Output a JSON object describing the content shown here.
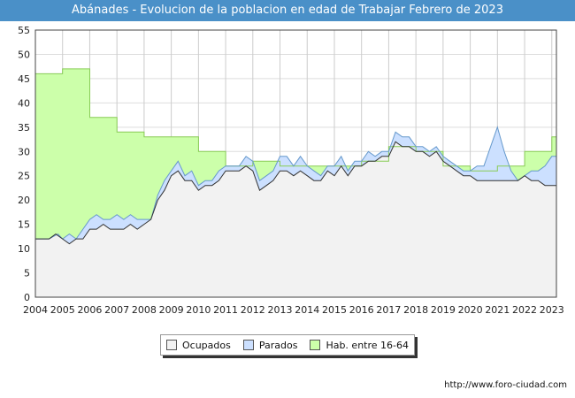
{
  "chart_data": {
    "type": "area",
    "title": "Abánades - Evolucion de la poblacion en edad de Trabajar Febrero de 2023",
    "x_start": 2004,
    "x_end": 2023.17,
    "ylim": [
      0,
      55
    ],
    "y_ticks": [
      0,
      5,
      10,
      15,
      20,
      25,
      30,
      35,
      40,
      45,
      50,
      55
    ],
    "x_ticks": [
      "2004",
      "2005",
      "2006",
      "2007",
      "2008",
      "2009",
      "2010",
      "2011",
      "2012",
      "2013",
      "2014",
      "2015",
      "2016",
      "2017",
      "2018",
      "2019",
      "2020",
      "2021",
      "2022",
      "2023"
    ],
    "grid": true,
    "legend_position": "bottom",
    "series": [
      {
        "name": "Hab. entre 16-64",
        "key": "hab",
        "color_fill": "#ccffaa",
        "color_line": "#88cc55",
        "points": [
          [
            2004.0,
            46
          ],
          [
            2005.0,
            46
          ],
          [
            2005.0,
            47
          ],
          [
            2006.0,
            47
          ],
          [
            2006.0,
            37
          ],
          [
            2007.0,
            37
          ],
          [
            2007.0,
            34
          ],
          [
            2008.0,
            34
          ],
          [
            2008.0,
            33
          ],
          [
            2010.0,
            33
          ],
          [
            2010.0,
            30
          ],
          [
            2011.0,
            30
          ],
          [
            2011.0,
            27
          ],
          [
            2012.0,
            27
          ],
          [
            2012.0,
            28
          ],
          [
            2013.0,
            28
          ],
          [
            2013.0,
            27
          ],
          [
            2014.0,
            27
          ],
          [
            2014.0,
            27
          ],
          [
            2015.0,
            27
          ],
          [
            2015.0,
            27
          ],
          [
            2016.0,
            27
          ],
          [
            2016.0,
            28
          ],
          [
            2017.0,
            28
          ],
          [
            2017.0,
            31
          ],
          [
            2018.0,
            31
          ],
          [
            2018.0,
            30
          ],
          [
            2019.0,
            30
          ],
          [
            2019.0,
            27
          ],
          [
            2020.0,
            27
          ],
          [
            2020.0,
            26
          ],
          [
            2021.0,
            26
          ],
          [
            2021.0,
            27
          ],
          [
            2022.0,
            27
          ],
          [
            2022.0,
            30
          ],
          [
            2023.0,
            30
          ],
          [
            2023.0,
            33
          ],
          [
            2023.17,
            33
          ]
        ]
      },
      {
        "name": "Parados",
        "key": "parados",
        "color_fill": "#cce0ff",
        "color_line": "#6699cc",
        "points": [
          [
            2004.0,
            12
          ],
          [
            2004.5,
            12
          ],
          [
            2004.83,
            13
          ],
          [
            2005.0,
            12
          ],
          [
            2005.25,
            13
          ],
          [
            2005.5,
            12
          ],
          [
            2005.75,
            14
          ],
          [
            2006.0,
            16
          ],
          [
            2006.25,
            17
          ],
          [
            2006.5,
            16
          ],
          [
            2006.75,
            16
          ],
          [
            2007.0,
            17
          ],
          [
            2007.25,
            16
          ],
          [
            2007.5,
            17
          ],
          [
            2007.75,
            16
          ],
          [
            2008.0,
            16
          ],
          [
            2008.25,
            16
          ],
          [
            2008.5,
            21
          ],
          [
            2008.75,
            24
          ],
          [
            2009.0,
            26
          ],
          [
            2009.25,
            28
          ],
          [
            2009.5,
            25
          ],
          [
            2009.75,
            26
          ],
          [
            2010.0,
            23
          ],
          [
            2010.25,
            24
          ],
          [
            2010.5,
            24
          ],
          [
            2010.75,
            26
          ],
          [
            2011.0,
            27
          ],
          [
            2011.25,
            27
          ],
          [
            2011.5,
            27
          ],
          [
            2011.75,
            29
          ],
          [
            2012.0,
            28
          ],
          [
            2012.25,
            24
          ],
          [
            2012.5,
            25
          ],
          [
            2012.75,
            26
          ],
          [
            2013.0,
            29
          ],
          [
            2013.25,
            29
          ],
          [
            2013.5,
            27
          ],
          [
            2013.75,
            29
          ],
          [
            2014.0,
            27
          ],
          [
            2014.25,
            26
          ],
          [
            2014.5,
            25
          ],
          [
            2014.75,
            27
          ],
          [
            2015.0,
            27
          ],
          [
            2015.25,
            29
          ],
          [
            2015.5,
            26
          ],
          [
            2015.75,
            28
          ],
          [
            2016.0,
            28
          ],
          [
            2016.25,
            30
          ],
          [
            2016.5,
            29
          ],
          [
            2016.75,
            30
          ],
          [
            2017.0,
            30
          ],
          [
            2017.25,
            34
          ],
          [
            2017.5,
            33
          ],
          [
            2017.75,
            33
          ],
          [
            2018.0,
            31
          ],
          [
            2018.25,
            31
          ],
          [
            2018.5,
            30
          ],
          [
            2018.75,
            31
          ],
          [
            2019.0,
            29
          ],
          [
            2019.25,
            28
          ],
          [
            2019.5,
            27
          ],
          [
            2019.75,
            26
          ],
          [
            2020.0,
            26
          ],
          [
            2020.25,
            27
          ],
          [
            2020.5,
            27
          ],
          [
            2020.75,
            31
          ],
          [
            2021.0,
            35
          ],
          [
            2021.25,
            30
          ],
          [
            2021.5,
            26
          ],
          [
            2021.75,
            24
          ],
          [
            2022.0,
            25
          ],
          [
            2022.25,
            26
          ],
          [
            2022.5,
            26
          ],
          [
            2022.75,
            27
          ],
          [
            2023.0,
            29
          ],
          [
            2023.17,
            29
          ]
        ]
      },
      {
        "name": "Ocupados",
        "key": "ocupados",
        "color_fill": "#f2f2f2",
        "color_line": "#333333",
        "points": [
          [
            2004.0,
            12
          ],
          [
            2004.5,
            12
          ],
          [
            2004.75,
            13
          ],
          [
            2005.0,
            12
          ],
          [
            2005.25,
            11
          ],
          [
            2005.5,
            12
          ],
          [
            2005.75,
            12
          ],
          [
            2006.0,
            14
          ],
          [
            2006.25,
            14
          ],
          [
            2006.5,
            15
          ],
          [
            2006.75,
            14
          ],
          [
            2007.0,
            14
          ],
          [
            2007.25,
            14
          ],
          [
            2007.5,
            15
          ],
          [
            2007.75,
            14
          ],
          [
            2008.0,
            15
          ],
          [
            2008.25,
            16
          ],
          [
            2008.5,
            20
          ],
          [
            2008.75,
            22
          ],
          [
            2009.0,
            25
          ],
          [
            2009.25,
            26
          ],
          [
            2009.5,
            24
          ],
          [
            2009.75,
            24
          ],
          [
            2010.0,
            22
          ],
          [
            2010.25,
            23
          ],
          [
            2010.5,
            23
          ],
          [
            2010.75,
            24
          ],
          [
            2011.0,
            26
          ],
          [
            2011.25,
            26
          ],
          [
            2011.5,
            26
          ],
          [
            2011.75,
            27
          ],
          [
            2012.0,
            26
          ],
          [
            2012.25,
            22
          ],
          [
            2012.5,
            23
          ],
          [
            2012.75,
            24
          ],
          [
            2013.0,
            26
          ],
          [
            2013.25,
            26
          ],
          [
            2013.5,
            25
          ],
          [
            2013.75,
            26
          ],
          [
            2014.0,
            25
          ],
          [
            2014.25,
            24
          ],
          [
            2014.5,
            24
          ],
          [
            2014.75,
            26
          ],
          [
            2015.0,
            25
          ],
          [
            2015.25,
            27
          ],
          [
            2015.5,
            25
          ],
          [
            2015.75,
            27
          ],
          [
            2016.0,
            27
          ],
          [
            2016.25,
            28
          ],
          [
            2016.5,
            28
          ],
          [
            2016.75,
            29
          ],
          [
            2017.0,
            29
          ],
          [
            2017.25,
            32
          ],
          [
            2017.5,
            31
          ],
          [
            2017.75,
            31
          ],
          [
            2018.0,
            30
          ],
          [
            2018.25,
            30
          ],
          [
            2018.5,
            29
          ],
          [
            2018.75,
            30
          ],
          [
            2019.0,
            28
          ],
          [
            2019.25,
            27
          ],
          [
            2019.5,
            26
          ],
          [
            2019.75,
            25
          ],
          [
            2020.0,
            25
          ],
          [
            2020.25,
            24
          ],
          [
            2020.5,
            24
          ],
          [
            2020.75,
            24
          ],
          [
            2021.0,
            24
          ],
          [
            2021.25,
            24
          ],
          [
            2021.5,
            24
          ],
          [
            2021.75,
            24
          ],
          [
            2022.0,
            25
          ],
          [
            2022.25,
            24
          ],
          [
            2022.5,
            24
          ],
          [
            2022.75,
            23
          ],
          [
            2023.0,
            23
          ],
          [
            2023.17,
            23
          ]
        ]
      }
    ]
  },
  "legend": {
    "items": [
      {
        "label": "Ocupados",
        "color": "#f2f2f2"
      },
      {
        "label": "Parados",
        "color": "#cce0ff"
      },
      {
        "label": "Hab. entre 16-64",
        "color": "#ccffaa"
      }
    ]
  },
  "footer": {
    "url": "http://www.foro-ciudad.com"
  }
}
